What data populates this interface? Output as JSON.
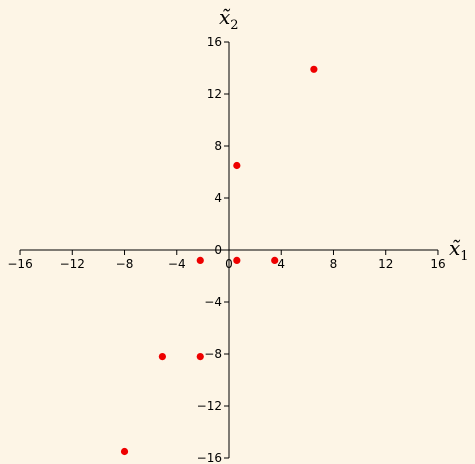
{
  "chart_data": {
    "type": "scatter",
    "xlabel": "x̃",
    "xlabel_sub": "1",
    "ylabel": "x̃",
    "ylabel_sub": "2",
    "xlim": [
      -16,
      16
    ],
    "ylim": [
      -16,
      16
    ],
    "x_ticks": [
      -16,
      -12,
      -8,
      -4,
      0,
      4,
      8,
      12,
      16
    ],
    "y_ticks": [
      -16,
      -12,
      -8,
      -4,
      0,
      4,
      8,
      12,
      16
    ],
    "x_tick_labels": [
      "−16",
      "−12",
      "−8",
      "−4",
      "0",
      "4",
      "8",
      "12",
      "16"
    ],
    "y_tick_labels": [
      "−16",
      "−12",
      "−8",
      "−4",
      "0",
      "4",
      "8",
      "12",
      "16"
    ],
    "grid": false,
    "point_color": "#ee0000",
    "axis_color": "#000000",
    "background": "#fdf5e6",
    "series": [
      {
        "points": [
          {
            "x": 6.5,
            "y": 13.9
          },
          {
            "x": 0.6,
            "y": 6.5
          },
          {
            "x": -2.2,
            "y": -0.8
          },
          {
            "x": 0.6,
            "y": -0.8
          },
          {
            "x": 3.5,
            "y": -0.8
          },
          {
            "x": -5.1,
            "y": -8.2
          },
          {
            "x": -2.2,
            "y": -8.2
          },
          {
            "x": -8.0,
            "y": -15.5
          }
        ]
      }
    ]
  }
}
